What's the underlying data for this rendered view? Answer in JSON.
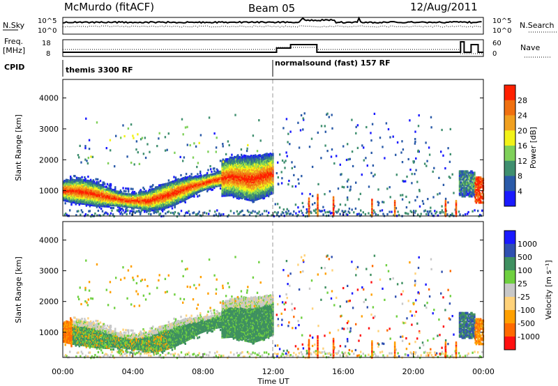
{
  "header": {
    "station": "McMurdo (fitACF)",
    "beam": "Beam 05",
    "date": "12/Aug/2011"
  },
  "strip_panels": {
    "noise": {
      "left_label": "N.Sky",
      "right_label": "N.Search",
      "left_top": "10^5",
      "left_bottom": "10^0",
      "right_top": "10^5",
      "right_bottom": "10^0"
    },
    "freq": {
      "left_label_1": "Freq.",
      "left_label_2": "[MHz]",
      "right_label": "Nave",
      "left_top": "18",
      "left_bottom": "8",
      "right_top": "60",
      "right_bottom": "0"
    },
    "cpid": {
      "label": "CPID",
      "programs": [
        {
          "name": "themis 3300 RF",
          "start_hour": 0
        },
        {
          "name": "normalsound (fast) 157 RF",
          "start_hour": 12
        }
      ]
    }
  },
  "colors": {
    "power": [
      "#1a1aff",
      "#2a5aa8",
      "#3f8f6f",
      "#7fd05a",
      "#f2f218",
      "#f0a020",
      "#f07010",
      "#ff2000"
    ],
    "velocity": [
      "#ff1010",
      "#ff6a00",
      "#ffa000",
      "#ffd27a",
      "#c8c8c8",
      "#6fd040",
      "#3f9060",
      "#3050b0",
      "#1a1aff"
    ]
  },
  "chart_data": [
    {
      "type": "heatmap",
      "title": "Power",
      "ylabel": "Slant Range [km]",
      "xlabel": "",
      "x_range_hours": [
        0,
        24
      ],
      "ylim": [
        180,
        4600
      ],
      "yticks": [
        1000,
        2000,
        3000,
        4000
      ],
      "colorbar": {
        "label": "Power [dB]",
        "range": [
          0,
          32
        ],
        "ticks": [
          4,
          8,
          12,
          16,
          20,
          24,
          28
        ]
      },
      "features": [
        {
          "desc": "main scatter band",
          "hours": [
            0,
            12
          ],
          "center_km": [
            1050,
            1000,
            850,
            720,
            700,
            900,
            1150,
            1350,
            1500,
            1400,
            1600
          ],
          "peak_db": 30
        },
        {
          "desc": "late band",
          "hours": [
            22.6,
            24
          ],
          "center_km": [
            1300,
            1100
          ],
          "peak_db": 28
        }
      ]
    },
    {
      "type": "heatmap",
      "title": "Velocity",
      "ylabel": "Slant Range [km]",
      "xlabel": "Time UT",
      "x_range_hours": [
        0,
        24
      ],
      "xticks": [
        "00:00",
        "04:00",
        "08:00",
        "12:00",
        "16:00",
        "20:00",
        "00:00"
      ],
      "ylim": [
        180,
        4600
      ],
      "yticks": [
        1000,
        2000,
        3000,
        4000
      ],
      "colorbar": {
        "label": "Velocity [m s^-1]",
        "ticks": [
          "1000",
          "500",
          "100",
          "25",
          "-25",
          "-100",
          "-500",
          "-1000"
        ]
      }
    }
  ],
  "axes": {
    "xlabel": "Time UT",
    "ylabel": "Slant Range [km]",
    "xticks": [
      "00:00",
      "04:00",
      "08:00",
      "12:00",
      "16:00",
      "20:00",
      "00:00"
    ],
    "yticks": [
      "1000",
      "2000",
      "3000",
      "4000"
    ],
    "power_cbar_label": "Power [dB]",
    "power_cbar_ticks": [
      "4",
      "8",
      "12",
      "16",
      "20",
      "24",
      "28"
    ],
    "vel_cbar_label": "Velocity [m s⁻¹]",
    "vel_cbar_ticks": [
      "1000",
      "500",
      "100",
      "25",
      "-25",
      "-100",
      "-500",
      "-1000"
    ]
  }
}
